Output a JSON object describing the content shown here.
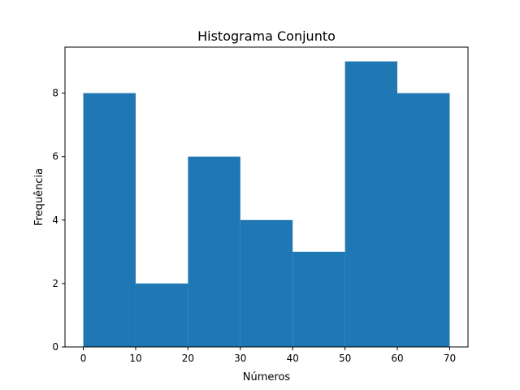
{
  "chart_data": {
    "type": "bar",
    "title": "Histograma Conjunto",
    "xlabel": "Números",
    "ylabel": "Frequência",
    "bin_edges": [
      0,
      10,
      20,
      30,
      40,
      50,
      60,
      70
    ],
    "values": [
      8,
      2,
      6,
      4,
      3,
      9,
      8
    ],
    "xlim": [
      -3.5,
      73.5
    ],
    "ylim": [
      0,
      9.45
    ],
    "xticks": [
      "0",
      "10",
      "20",
      "30",
      "40",
      "50",
      "60",
      "70"
    ],
    "yticks": [
      "0",
      "2",
      "4",
      "6",
      "8"
    ],
    "bar_color": "#1f77b4",
    "grid": false
  }
}
